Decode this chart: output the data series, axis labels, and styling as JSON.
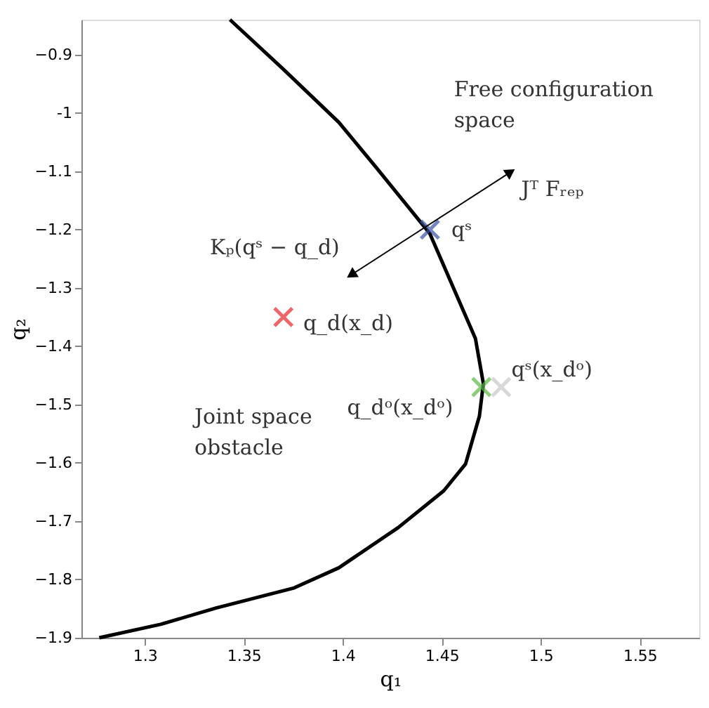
{
  "chart_data": {
    "type": "line",
    "xlabel": "q₁",
    "ylabel": "q₂",
    "xlim": [
      1.268,
      1.58
    ],
    "ylim": [
      -1.9,
      -0.84
    ],
    "xticks": [
      {
        "value": 1.3,
        "label": "1.3"
      },
      1.35,
      {
        "value": 1.4,
        "label": "1.4"
      },
      1.45,
      {
        "value": 1.5,
        "label": "1.5"
      },
      1.55
    ],
    "yticks": [
      -1.9,
      -1.8,
      -1.7,
      -1.6,
      -1.5,
      -1.4,
      -1.3,
      -1.2,
      -1.1,
      {
        "value": -1,
        "label": "-1"
      },
      -0.9
    ],
    "grid": false,
    "series": [
      {
        "color": "#000000",
        "marker": "none",
        "x": [
          1.343,
          1.37,
          1.398,
          1.417,
          1.444,
          1.467,
          1.471,
          1.469,
          1.462,
          1.451,
          1.428,
          1.398,
          1.375,
          1.336,
          1.308,
          1.277
        ],
        "values": [
          -0.84,
          -0.925,
          -1.016,
          -1.094,
          -1.207,
          -1.387,
          -1.464,
          -1.52,
          -1.602,
          -1.648,
          -1.711,
          -1.78,
          -1.815,
          -1.849,
          -1.877,
          -1.9
        ]
      },
      {
        "type": "scatter",
        "color": "#e8262b",
        "marker": "cross",
        "x": [
          1.37
        ],
        "values": [
          -1.35
        ]
      },
      {
        "type": "scatter",
        "color": "#3a54a4",
        "marker": "cross",
        "x": [
          1.444
        ],
        "values": [
          -1.2
        ]
      },
      {
        "type": "scatter",
        "color": "#5cb946",
        "marker": "cross",
        "x": [
          1.47
        ],
        "values": [
          -1.47
        ]
      },
      {
        "type": "scatter",
        "color": "#c8c8c8",
        "marker": "cross",
        "x": [
          1.48
        ],
        "values": [
          -1.47
        ]
      },
      {
        "color": "#000000",
        "marker": "triangle",
        "x": [
          1.405,
          1.484
        ],
        "values": [
          -1.276,
          -1.103
        ]
      }
    ],
    "annotations": [
      "Free configuration\nspace",
      "Joint space\nobstacle",
      "Jᵀ Fᵣₑₚ",
      "Kₚ(qˢ − q_d)",
      "qˢ",
      "q_d(x_d)",
      "qˢ(x_dᵒ)",
      "q_dᵒ(x_dᵒ)"
    ]
  }
}
